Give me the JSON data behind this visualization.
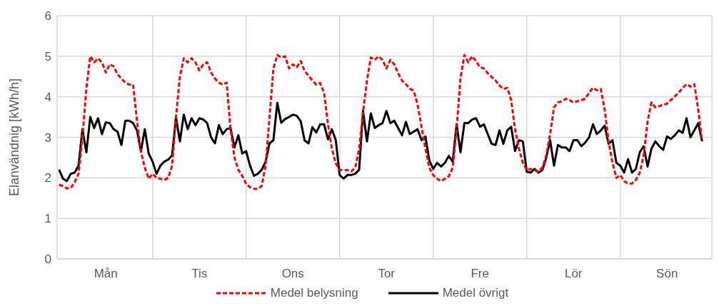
{
  "chart_data": {
    "type": "line",
    "ylabel": "Elanvändnig [kWh/h]",
    "categories": [
      null,
      null,
      null,
      null,
      null,
      null,
      null,
      null,
      null,
      null,
      null,
      null,
      "Mån",
      null,
      null,
      null,
      null,
      null,
      null,
      null,
      null,
      null,
      null,
      null,
      null,
      null,
      null,
      null,
      null,
      null,
      null,
      null,
      null,
      null,
      null,
      null,
      "Tis",
      null,
      null,
      null,
      null,
      null,
      null,
      null,
      null,
      null,
      null,
      null,
      null,
      null,
      null,
      null,
      null,
      null,
      null,
      null,
      null,
      null,
      null,
      null,
      "Ons",
      null,
      null,
      null,
      null,
      null,
      null,
      null,
      null,
      null,
      null,
      null,
      null,
      null,
      null,
      null,
      null,
      null,
      null,
      null,
      null,
      null,
      null,
      null,
      "Tor",
      null,
      null,
      null,
      null,
      null,
      null,
      null,
      null,
      null,
      null,
      null,
      null,
      null,
      null,
      null,
      null,
      null,
      null,
      null,
      null,
      null,
      null,
      null,
      "Fre",
      null,
      null,
      null,
      null,
      null,
      null,
      null,
      null,
      null,
      null,
      null,
      null,
      null,
      null,
      null,
      null,
      null,
      null,
      null,
      null,
      null,
      null,
      null,
      "Lör",
      null,
      null,
      null,
      null,
      null,
      null,
      null,
      null,
      null,
      null,
      null,
      null,
      null,
      null,
      null,
      null,
      null,
      null,
      null,
      null,
      null,
      null,
      null,
      "Sön",
      null,
      null,
      null,
      null,
      null,
      null,
      null,
      null,
      null,
      null,
      null
    ],
    "series": [
      {
        "name": "Medel belysning",
        "color": "#ff0000",
        "line_style": "dashed",
        "values": [
          1.83,
          1.8,
          1.74,
          1.75,
          1.89,
          2.1,
          3.0,
          4.2,
          5.0,
          4.85,
          4.95,
          4.85,
          4.6,
          4.8,
          4.75,
          4.55,
          4.45,
          4.35,
          4.3,
          4.3,
          3.4,
          2.65,
          2.25,
          1.98,
          2.1,
          2.0,
          1.98,
          1.95,
          2.0,
          2.3,
          3.5,
          4.5,
          4.95,
          4.85,
          4.95,
          4.85,
          4.65,
          4.8,
          4.85,
          4.6,
          4.45,
          4.35,
          4.3,
          4.35,
          3.2,
          2.5,
          2.2,
          2.05,
          1.85,
          1.77,
          1.73,
          1.73,
          1.8,
          2.3,
          3.5,
          4.7,
          5.03,
          4.97,
          5.0,
          4.7,
          4.8,
          4.73,
          4.88,
          4.64,
          4.52,
          4.4,
          4.3,
          4.34,
          4.1,
          3.32,
          2.72,
          2.36,
          2.2,
          2.19,
          2.19,
          2.16,
          2.25,
          2.72,
          3.62,
          4.4,
          4.97,
          4.91,
          5.0,
          4.91,
          4.7,
          4.91,
          4.8,
          4.58,
          4.4,
          4.31,
          4.2,
          4.15,
          3.8,
          3.26,
          2.72,
          2.25,
          2.07,
          1.98,
          1.92,
          1.98,
          2.04,
          2.25,
          3.2,
          4.46,
          5.03,
          4.85,
          5.0,
          4.88,
          4.73,
          4.7,
          4.58,
          4.49,
          4.4,
          4.28,
          4.19,
          4.22,
          3.92,
          3.2,
          2.72,
          2.37,
          2.2,
          2.22,
          2.19,
          2.16,
          2.25,
          2.55,
          3.08,
          3.74,
          3.86,
          3.89,
          3.95,
          3.92,
          3.86,
          3.89,
          3.92,
          3.95,
          4.1,
          4.22,
          4.16,
          4.19,
          3.68,
          2.9,
          2.37,
          2.0,
          2.07,
          1.92,
          1.86,
          1.86,
          1.95,
          2.13,
          2.55,
          3.38,
          3.86,
          3.74,
          3.77,
          3.8,
          3.83,
          3.92,
          4.01,
          4.1,
          4.22,
          4.31,
          4.25,
          4.31,
          3.68,
          2.9,
          null,
          null
        ]
      },
      {
        "name": "Medel övrigt",
        "color": "#000000",
        "line_style": "solid",
        "values": [
          2.2,
          1.98,
          1.92,
          2.1,
          2.13,
          2.3,
          3.2,
          2.63,
          3.5,
          3.23,
          3.47,
          3.08,
          3.37,
          3.35,
          3.2,
          3.14,
          2.81,
          3.41,
          3.41,
          3.35,
          3.17,
          2.66,
          3.2,
          2.6,
          2.4,
          2.1,
          2.3,
          2.4,
          2.45,
          2.55,
          3.5,
          2.9,
          3.56,
          3.2,
          3.47,
          3.3,
          3.47,
          3.44,
          3.35,
          3.0,
          2.85,
          3.3,
          3.08,
          3.2,
          3.23,
          2.75,
          3.05,
          2.6,
          2.66,
          2.3,
          2.05,
          2.1,
          2.2,
          2.4,
          2.85,
          2.93,
          3.85,
          3.36,
          3.45,
          3.5,
          3.56,
          3.53,
          3.4,
          2.92,
          2.85,
          3.25,
          3.12,
          3.32,
          3.32,
          2.95,
          3.2,
          2.93,
          2.07,
          1.98,
          2.07,
          2.07,
          2.1,
          2.2,
          3.65,
          2.9,
          3.59,
          3.23,
          3.3,
          3.35,
          3.65,
          3.35,
          3.41,
          3.23,
          3.05,
          3.38,
          3.08,
          3.14,
          3.2,
          2.93,
          3.02,
          2.43,
          2.22,
          2.37,
          2.28,
          2.37,
          2.54,
          2.4,
          3.32,
          2.63,
          3.35,
          3.35,
          3.44,
          3.47,
          3.26,
          3.32,
          3.08,
          2.84,
          2.81,
          3.17,
          2.84,
          3.17,
          3.26,
          2.66,
          2.93,
          2.9,
          2.15,
          2.13,
          2.22,
          2.13,
          2.19,
          2.49,
          2.93,
          2.3,
          2.81,
          2.75,
          2.75,
          2.66,
          2.93,
          2.93,
          2.78,
          2.87,
          3.0,
          3.32,
          3.08,
          3.17,
          3.29,
          2.84,
          2.93,
          2.37,
          2.3,
          2.13,
          2.46,
          2.13,
          2.22,
          2.63,
          2.78,
          2.28,
          2.72,
          2.9,
          2.78,
          2.69,
          3.02,
          2.96,
          3.05,
          3.17,
          3.11,
          3.47,
          3.0,
          3.17,
          3.35,
          2.9,
          null,
          null
        ]
      }
    ],
    "ylim": [
      0,
      6
    ],
    "yticks": [
      0,
      1,
      2,
      3,
      4,
      5,
      6
    ],
    "grid": true,
    "legend": "bottom",
    "marker": "none"
  }
}
